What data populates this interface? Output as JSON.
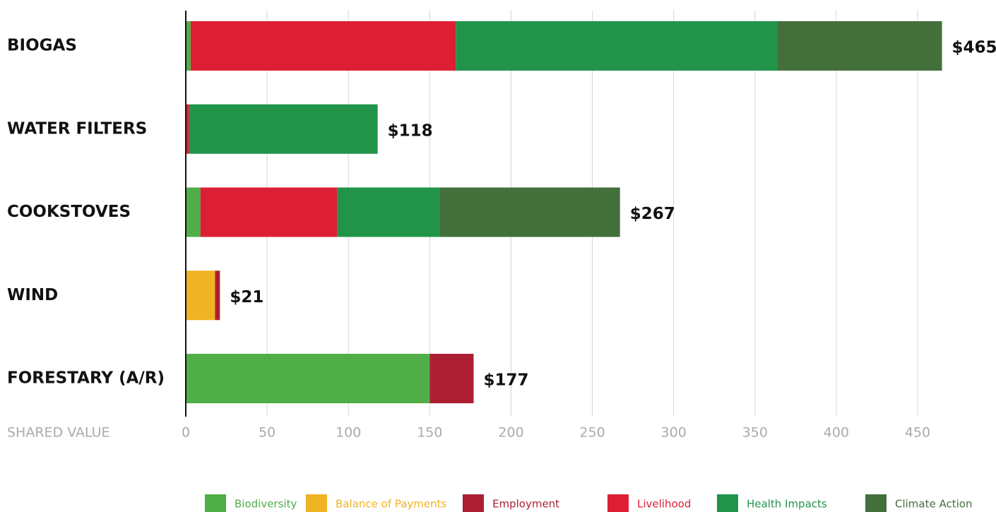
{
  "chart_data": {
    "type": "stacked_barh",
    "categories": [
      "BIOGAS",
      "WATER FILTERS",
      "COOKSTOVES",
      "WIND",
      "FORESTARY (A/R)"
    ],
    "series": [
      {
        "name": "Biodiversity",
        "color": "#4fae48",
        "values": [
          3,
          0,
          9,
          0,
          150
        ]
      },
      {
        "name": "Balance of Payments",
        "color": "#f0b323",
        "values": [
          0,
          0,
          0,
          18,
          0
        ]
      },
      {
        "name": "Employment",
        "color": "#ac1f33",
        "values": [
          0,
          0,
          0,
          3,
          27
        ]
      },
      {
        "name": "Livelihood",
        "color": "#dc1f35",
        "values": [
          163,
          2,
          84,
          0,
          0
        ]
      },
      {
        "name": "Health Impacts",
        "color": "#21944a",
        "values": [
          198,
          116,
          63,
          0,
          0
        ]
      },
      {
        "name": "Climate Action",
        "color": "#436f3b",
        "values": [
          101,
          0,
          111,
          0,
          0
        ]
      }
    ],
    "totals": [
      465,
      118,
      267,
      21,
      177
    ],
    "total_labels": [
      "$465",
      "$118",
      "$267",
      "$21",
      "$177"
    ],
    "xlabel": "SHARED VALUE",
    "xlim": [
      0,
      450
    ],
    "xticks": [
      0,
      50,
      100,
      150,
      200,
      250,
      300,
      350,
      400,
      450
    ],
    "grid": true
  }
}
